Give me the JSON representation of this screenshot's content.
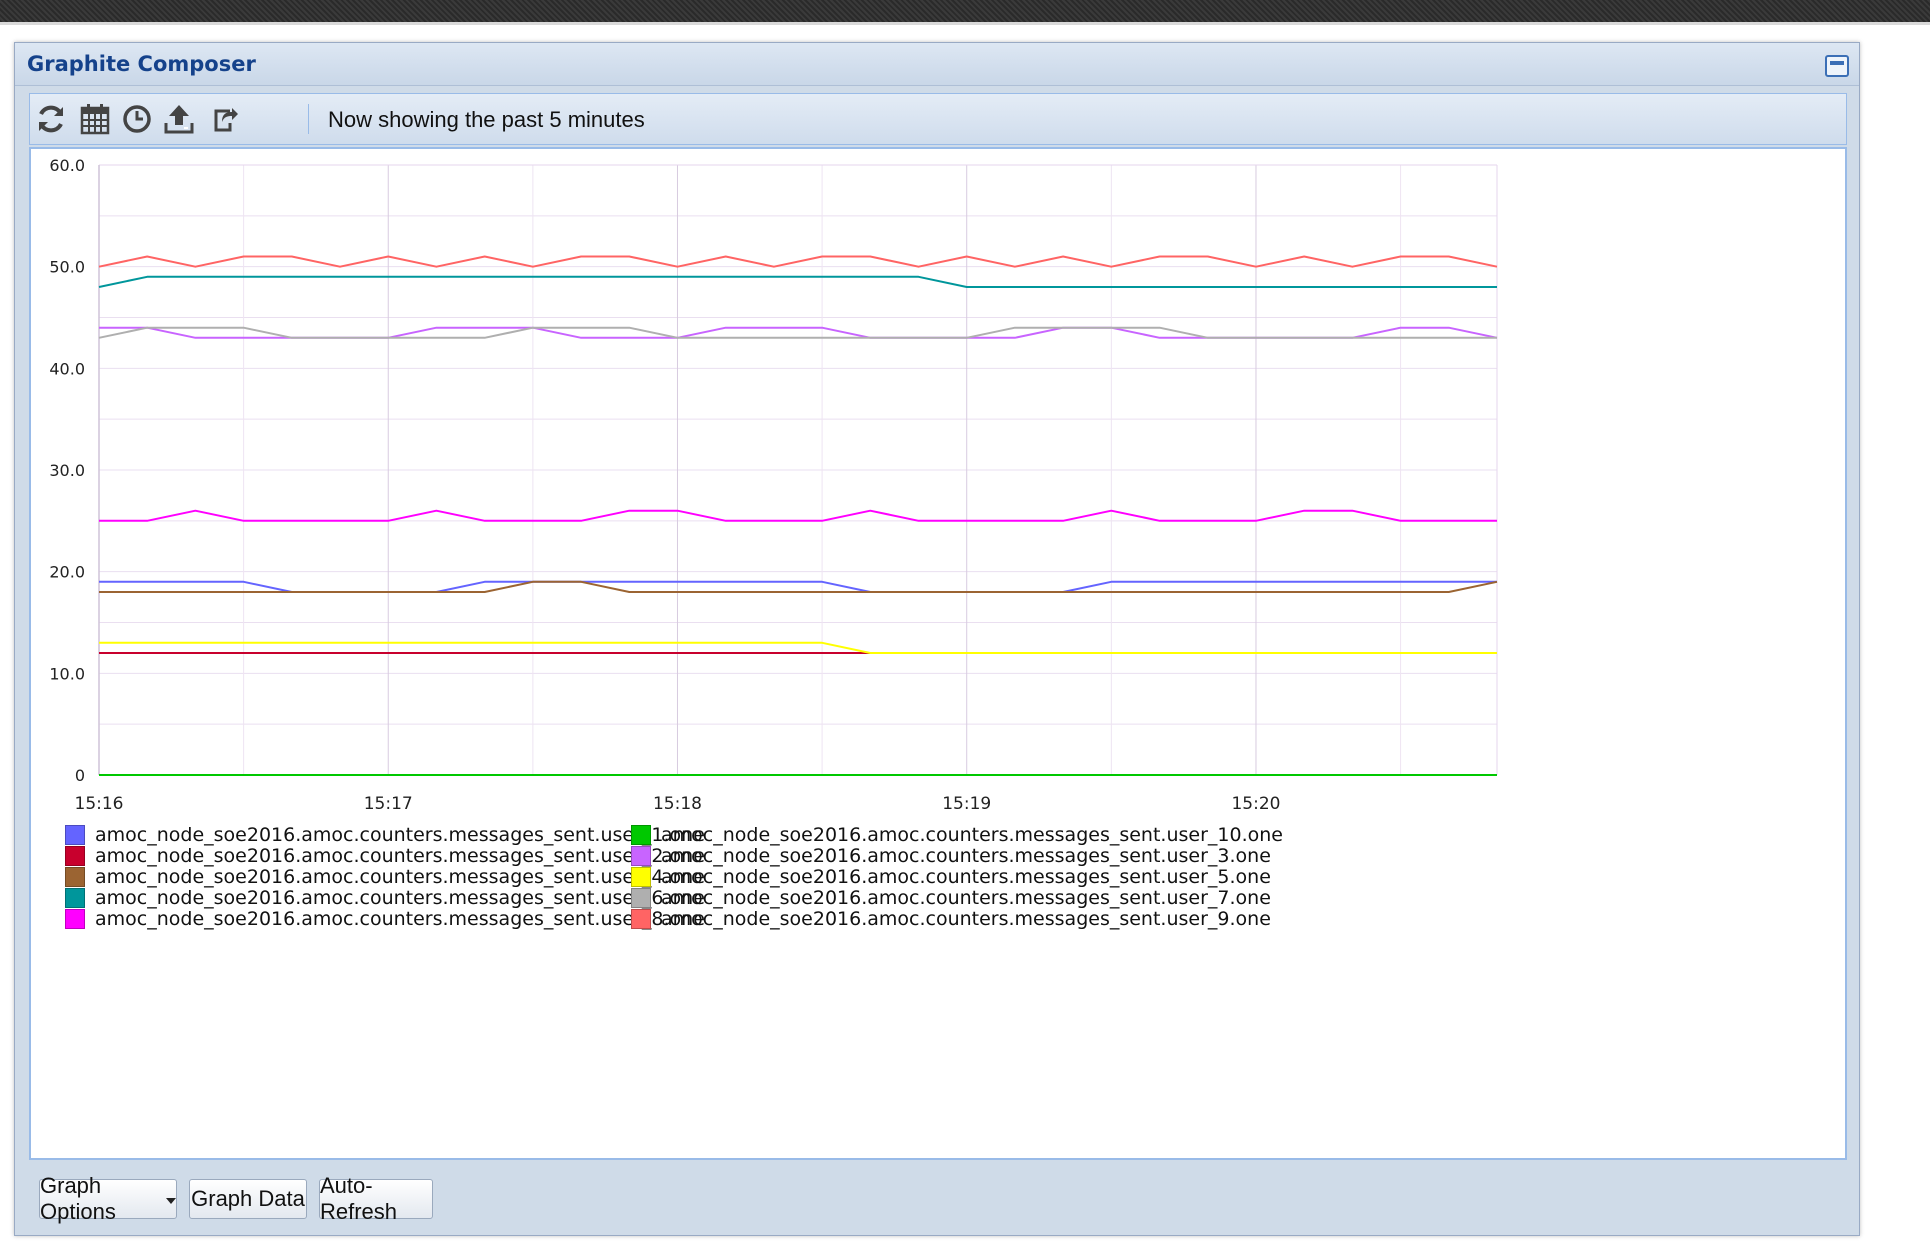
{
  "window": {
    "title": "Graphite Composer"
  },
  "toolbar": {
    "icons": [
      "refresh-icon",
      "calendar-icon",
      "clock-icon",
      "upload-icon",
      "share-icon"
    ],
    "status": "Now showing the past 5 minutes"
  },
  "buttons": {
    "graph_options": "Graph Options",
    "graph_data": "Graph Data",
    "auto_refresh": "Auto-Refresh"
  },
  "chart_data": {
    "type": "line",
    "ylim": [
      0,
      60
    ],
    "yticks": [
      "60.0",
      "50.0",
      "40.0",
      "30.0",
      "20.0",
      "10.0",
      "0"
    ],
    "ytick_values": [
      60,
      50,
      40,
      30,
      20,
      10,
      0
    ],
    "xlim": [
      0,
      29
    ],
    "xticks": [
      "15:16",
      "15:17",
      "15:18",
      "15:19",
      "15:20"
    ],
    "xtick_values": [
      0,
      6,
      12,
      18,
      24
    ],
    "grid": true,
    "legend_position": "bottom",
    "series": [
      {
        "name": "amoc_node_soe2016.amoc.counters.messages_sent.user_1.one",
        "color": "#6464ff",
        "values": [
          19,
          19,
          19,
          19,
          18,
          18,
          18,
          18,
          19,
          19,
          19,
          19,
          19,
          19,
          19,
          19,
          18,
          18,
          18,
          18,
          18,
          19,
          19,
          19,
          19,
          19,
          19,
          19,
          19,
          19
        ]
      },
      {
        "name": "amoc_node_soe2016.amoc.counters.messages_sent.user_2.one",
        "color": "#c8002d",
        "values": [
          12,
          12,
          12,
          12,
          12,
          12,
          12,
          12,
          12,
          12,
          12,
          12,
          12,
          12,
          12,
          12,
          12,
          12,
          12,
          12,
          12,
          12,
          12,
          12,
          12,
          12,
          12,
          12,
          12,
          12
        ]
      },
      {
        "name": "amoc_node_soe2016.amoc.counters.messages_sent.user_4.one",
        "color": "#9b6432",
        "values": [
          18,
          18,
          18,
          18,
          18,
          18,
          18,
          18,
          18,
          19,
          19,
          18,
          18,
          18,
          18,
          18,
          18,
          18,
          18,
          18,
          18,
          18,
          18,
          18,
          18,
          18,
          18,
          18,
          18,
          19
        ]
      },
      {
        "name": "amoc_node_soe2016.amoc.counters.messages_sent.user_6.one",
        "color": "#00969b",
        "values": [
          48,
          49,
          49,
          49,
          49,
          49,
          49,
          49,
          49,
          49,
          49,
          49,
          49,
          49,
          49,
          49,
          49,
          49,
          48,
          48,
          48,
          48,
          48,
          48,
          48,
          48,
          48,
          48,
          48,
          48
        ]
      },
      {
        "name": "amoc_node_soe2016.amoc.counters.messages_sent.user_8.one",
        "color": "#ff00ff",
        "values": [
          25,
          25,
          26,
          25,
          25,
          25,
          25,
          26,
          25,
          25,
          25,
          26,
          26,
          25,
          25,
          25,
          26,
          25,
          25,
          25,
          25,
          26,
          25,
          25,
          25,
          26,
          26,
          25,
          25,
          25
        ]
      },
      {
        "name": "amoc_node_soe2016.amoc.counters.messages_sent.user_10.one",
        "color": "#00c800",
        "values": [
          0,
          0,
          0,
          0,
          0,
          0,
          0,
          0,
          0,
          0,
          0,
          0,
          0,
          0,
          0,
          0,
          0,
          0,
          0,
          0,
          0,
          0,
          0,
          0,
          0,
          0,
          0,
          0,
          0,
          0
        ]
      },
      {
        "name": "amoc_node_soe2016.amoc.counters.messages_sent.user_3.one",
        "color": "#c864ff",
        "values": [
          44,
          44,
          43,
          43,
          43,
          43,
          43,
          44,
          44,
          44,
          43,
          43,
          43,
          44,
          44,
          44,
          43,
          43,
          43,
          43,
          44,
          44,
          43,
          43,
          43,
          43,
          43,
          44,
          44,
          43
        ]
      },
      {
        "name": "amoc_node_soe2016.amoc.counters.messages_sent.user_5.one",
        "color": "#ffff00",
        "values": [
          13,
          13,
          13,
          13,
          13,
          13,
          13,
          13,
          13,
          13,
          13,
          13,
          13,
          13,
          13,
          13,
          12,
          12,
          12,
          12,
          12,
          12,
          12,
          12,
          12,
          12,
          12,
          12,
          12,
          12
        ]
      },
      {
        "name": "amoc_node_soe2016.amoc.counters.messages_sent.user_7.one",
        "color": "#afafaf",
        "values": [
          43,
          44,
          44,
          44,
          43,
          43,
          43,
          43,
          43,
          44,
          44,
          44,
          43,
          43,
          43,
          43,
          43,
          43,
          43,
          44,
          44,
          44,
          44,
          43,
          43,
          43,
          43,
          43,
          43,
          43
        ]
      },
      {
        "name": "amoc_node_soe2016.amoc.counters.messages_sent.user_9.one",
        "color": "#ff6464",
        "values": [
          50,
          51,
          50,
          51,
          51,
          50,
          51,
          50,
          51,
          50,
          51,
          51,
          50,
          51,
          50,
          51,
          51,
          50,
          51,
          50,
          51,
          50,
          51,
          51,
          50,
          51,
          50,
          51,
          51,
          50
        ]
      }
    ]
  }
}
